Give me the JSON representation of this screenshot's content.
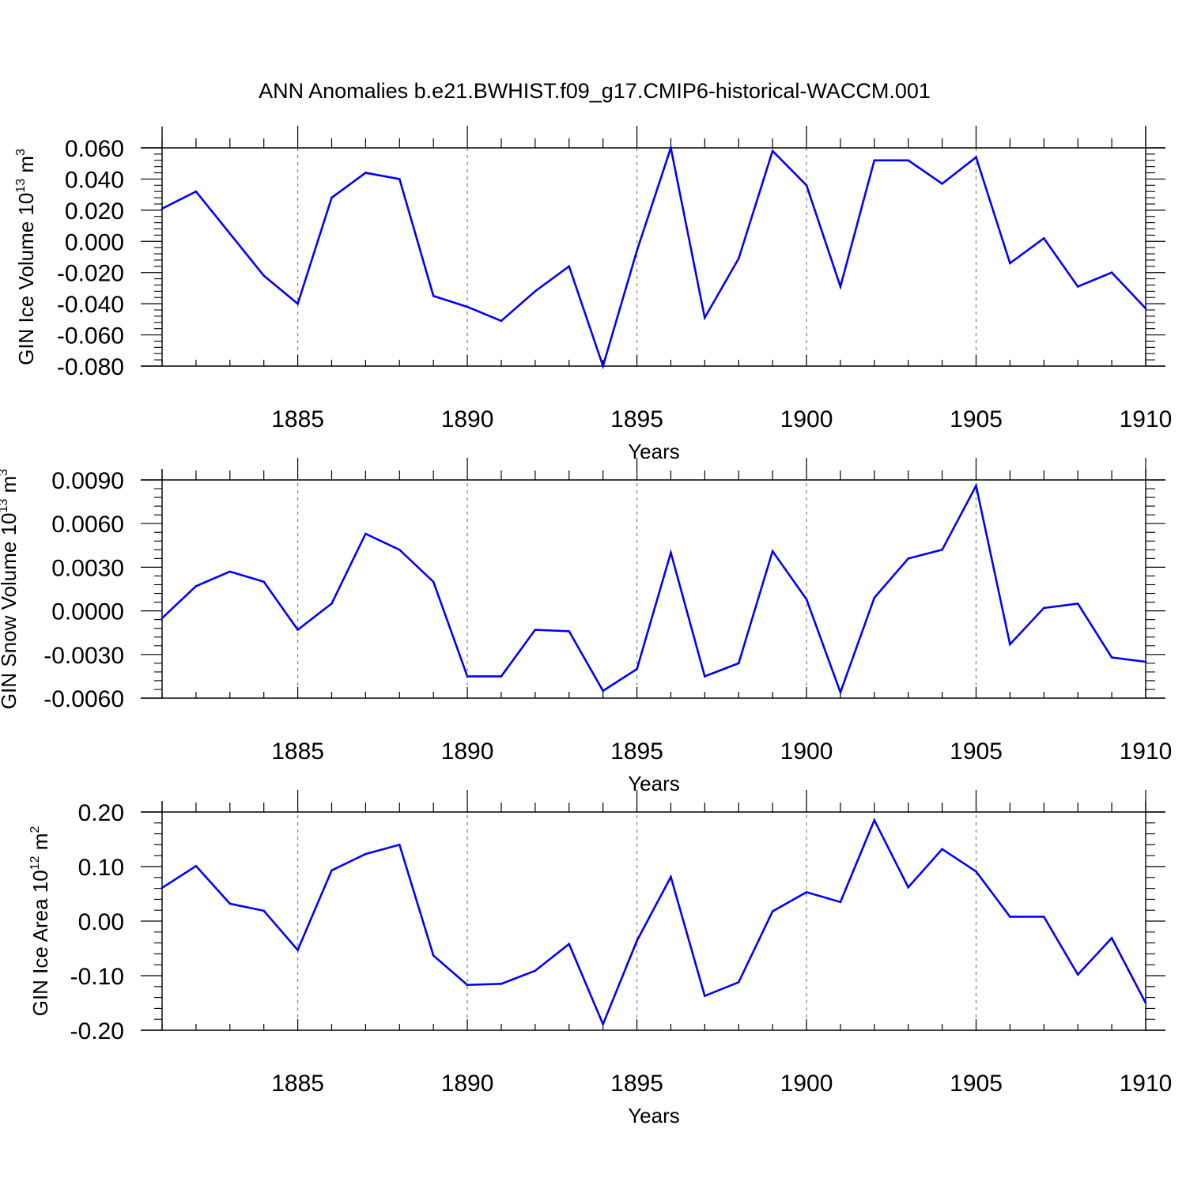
{
  "title": "ANN Anomalies b.e21.BWHIST.f09_g17.CMIP6-historical-WACCM.001",
  "colors": {
    "line": "#0000ff",
    "axis": "#000000",
    "grid": "#7f7f7f",
    "background": "#ffffff"
  },
  "chart_data": [
    {
      "type": "line",
      "ylabel_prefix": "GIN Ice Volume 10",
      "ylabel_exp": "13",
      "ylabel_unit": " m",
      "ylabel_unit_exp": "3",
      "xlabel": "Years",
      "xlim": [
        1881,
        1910
      ],
      "ylim": [
        -0.08,
        0.06
      ],
      "yticks": [
        -0.08,
        -0.06,
        -0.04,
        -0.02,
        0.0,
        0.02,
        0.04,
        0.06
      ],
      "ytick_labels": [
        "-0.080",
        "-0.060",
        "-0.040",
        "-0.020",
        "0.000",
        "0.020",
        "0.040",
        "0.060"
      ],
      "xticks": [
        1885,
        1890,
        1895,
        1900,
        1905,
        1910
      ],
      "xtick_labels": [
        "1885",
        "1890",
        "1895",
        "1900",
        "1905",
        "1910"
      ],
      "grid": "vertical dashed at major x ticks",
      "series": [
        {
          "x": [
            1881,
            1882,
            1883,
            1884,
            1885,
            1886,
            1887,
            1888,
            1889,
            1890,
            1891,
            1892,
            1893,
            1894,
            1895,
            1896,
            1897,
            1898,
            1899,
            1900,
            1901,
            1902,
            1903,
            1904,
            1905,
            1906,
            1907,
            1908,
            1909,
            1910
          ],
          "values": [
            0.021,
            0.032,
            0.005,
            -0.022,
            -0.04,
            0.028,
            0.044,
            0.04,
            -0.035,
            -0.042,
            -0.051,
            -0.032,
            -0.016,
            -0.08,
            -0.006,
            0.06,
            -0.049,
            -0.011,
            0.058,
            0.036,
            -0.029,
            0.052,
            0.052,
            0.037,
            0.054,
            -0.014,
            0.002,
            -0.029,
            -0.02,
            -0.043
          ]
        }
      ]
    },
    {
      "type": "line",
      "ylabel_prefix": "GIN Snow Volume 10",
      "ylabel_exp": "13",
      "ylabel_unit": " m",
      "ylabel_unit_exp": "3",
      "xlabel": "Years",
      "xlim": [
        1881,
        1910
      ],
      "ylim": [
        -0.006,
        0.009
      ],
      "yticks": [
        -0.006,
        -0.003,
        0.0,
        0.003,
        0.006,
        0.009
      ],
      "ytick_labels": [
        "-0.0060",
        "-0.0030",
        "0.0000",
        "0.0030",
        "0.0060",
        "0.0090"
      ],
      "xticks": [
        1885,
        1890,
        1895,
        1900,
        1905,
        1910
      ],
      "xtick_labels": [
        "1885",
        "1890",
        "1895",
        "1900",
        "1905",
        "1910"
      ],
      "grid": "vertical dashed at major x ticks",
      "series": [
        {
          "x": [
            1881,
            1882,
            1883,
            1884,
            1885,
            1886,
            1887,
            1888,
            1889,
            1890,
            1891,
            1892,
            1893,
            1894,
            1895,
            1896,
            1897,
            1898,
            1899,
            1900,
            1901,
            1902,
            1903,
            1904,
            1905,
            1906,
            1907,
            1908,
            1909,
            1910
          ],
          "values": [
            -0.0005,
            0.0017,
            0.0027,
            0.002,
            -0.0013,
            0.0005,
            0.0053,
            0.0042,
            0.002,
            -0.0045,
            -0.0045,
            -0.0013,
            -0.0014,
            -0.0055,
            -0.004,
            0.004,
            -0.0045,
            -0.0036,
            0.0041,
            0.0008,
            -0.0056,
            0.0009,
            0.0036,
            0.0042,
            0.0086,
            -0.0023,
            0.0002,
            0.0005,
            -0.0032,
            -0.0035
          ]
        }
      ]
    },
    {
      "type": "line",
      "ylabel_prefix": "GIN Ice Area 10",
      "ylabel_exp": "12",
      "ylabel_unit": " m",
      "ylabel_unit_exp": "2",
      "xlabel": "Years",
      "xlim": [
        1881,
        1910
      ],
      "ylim": [
        -0.2,
        0.2
      ],
      "yticks": [
        -0.2,
        -0.1,
        0.0,
        0.1,
        0.2
      ],
      "ytick_labels": [
        "-0.20",
        "-0.10",
        "0.00",
        "0.10",
        "0.20"
      ],
      "xticks": [
        1885,
        1890,
        1895,
        1900,
        1905,
        1910
      ],
      "xtick_labels": [
        "1885",
        "1890",
        "1895",
        "1900",
        "1905",
        "1910"
      ],
      "grid": "vertical dashed at major x ticks",
      "series": [
        {
          "x": [
            1881,
            1882,
            1883,
            1884,
            1885,
            1886,
            1887,
            1888,
            1889,
            1890,
            1891,
            1892,
            1893,
            1894,
            1895,
            1896,
            1897,
            1898,
            1899,
            1900,
            1901,
            1902,
            1903,
            1904,
            1905,
            1906,
            1907,
            1908,
            1909,
            1910
          ],
          "values": [
            0.061,
            0.101,
            0.032,
            0.019,
            -0.053,
            0.093,
            0.123,
            0.14,
            -0.063,
            -0.117,
            -0.115,
            -0.091,
            -0.042,
            -0.189,
            -0.036,
            0.081,
            -0.137,
            -0.112,
            0.018,
            0.053,
            0.035,
            0.185,
            0.062,
            0.132,
            0.091,
            0.008,
            0.008,
            -0.098,
            -0.031,
            -0.15
          ]
        }
      ]
    }
  ]
}
